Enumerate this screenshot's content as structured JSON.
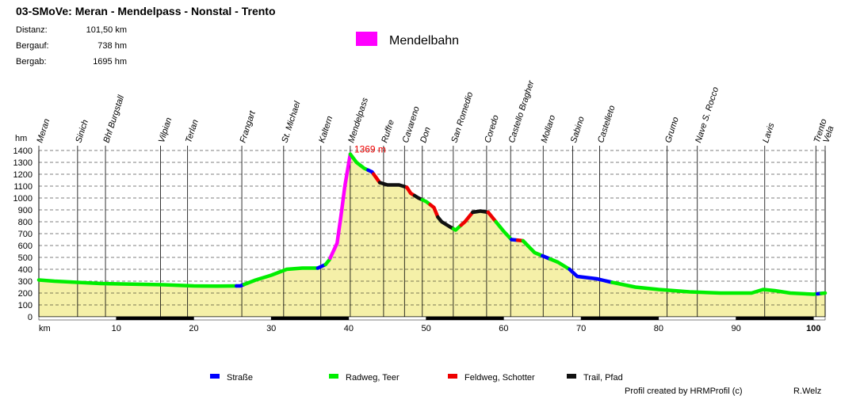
{
  "chart_data": {
    "type": "area",
    "title": "03-SMoVe: Meran - Mendelpass - Nonstal - Trento",
    "stats": [
      {
        "label": "Distanz:",
        "value": "101,50 km"
      },
      {
        "label": "Bergauf:",
        "value": "738 hm"
      },
      {
        "label": "Bergab:",
        "value": "1695 hm"
      }
    ],
    "ylabel": "hm",
    "xlabel": "km",
    "ylim": [
      0,
      1400
    ],
    "xlim": [
      0,
      101.5
    ],
    "yticks": [
      0,
      100,
      200,
      300,
      400,
      500,
      600,
      700,
      800,
      900,
      1000,
      1100,
      1200,
      1300,
      1400
    ],
    "xticks": [
      10,
      20,
      30,
      40,
      50,
      60,
      70,
      80,
      90,
      100
    ],
    "grid": "horizontal",
    "max_label": "1369 m",
    "max_point": {
      "x": 40.2,
      "y": 1369
    },
    "profile": [
      {
        "x": 0,
        "y": 310
      },
      {
        "x": 2,
        "y": 300
      },
      {
        "x": 5,
        "y": 290
      },
      {
        "x": 8,
        "y": 280
      },
      {
        "x": 12,
        "y": 275
      },
      {
        "x": 16,
        "y": 270
      },
      {
        "x": 20,
        "y": 260
      },
      {
        "x": 23,
        "y": 258
      },
      {
        "x": 26,
        "y": 260
      },
      {
        "x": 28,
        "y": 310
      },
      {
        "x": 30,
        "y": 350
      },
      {
        "x": 32,
        "y": 400
      },
      {
        "x": 34,
        "y": 410
      },
      {
        "x": 36,
        "y": 410
      },
      {
        "x": 37,
        "y": 440
      },
      {
        "x": 37.5,
        "y": 480
      },
      {
        "x": 38.5,
        "y": 620
      },
      {
        "x": 39,
        "y": 850
      },
      {
        "x": 39.5,
        "y": 1100
      },
      {
        "x": 40.2,
        "y": 1369
      },
      {
        "x": 41,
        "y": 1300
      },
      {
        "x": 42,
        "y": 1250
      },
      {
        "x": 43,
        "y": 1220
      },
      {
        "x": 44,
        "y": 1130
      },
      {
        "x": 45,
        "y": 1110
      },
      {
        "x": 46.5,
        "y": 1110
      },
      {
        "x": 47.5,
        "y": 1090
      },
      {
        "x": 48,
        "y": 1040
      },
      {
        "x": 49,
        "y": 1000
      },
      {
        "x": 50,
        "y": 970
      },
      {
        "x": 51,
        "y": 920
      },
      {
        "x": 51.5,
        "y": 840
      },
      {
        "x": 52,
        "y": 800
      },
      {
        "x": 53,
        "y": 760
      },
      {
        "x": 53.8,
        "y": 730
      },
      {
        "x": 55,
        "y": 800
      },
      {
        "x": 56,
        "y": 880
      },
      {
        "x": 57,
        "y": 890
      },
      {
        "x": 58,
        "y": 880
      },
      {
        "x": 59,
        "y": 800
      },
      {
        "x": 60,
        "y": 720
      },
      {
        "x": 61,
        "y": 650
      },
      {
        "x": 62.5,
        "y": 640
      },
      {
        "x": 64,
        "y": 540
      },
      {
        "x": 65.5,
        "y": 500
      },
      {
        "x": 67,
        "y": 460
      },
      {
        "x": 68.5,
        "y": 400
      },
      {
        "x": 69.5,
        "y": 340
      },
      {
        "x": 72,
        "y": 320
      },
      {
        "x": 74,
        "y": 290
      },
      {
        "x": 77,
        "y": 250
      },
      {
        "x": 80,
        "y": 230
      },
      {
        "x": 84,
        "y": 210
      },
      {
        "x": 88,
        "y": 200
      },
      {
        "x": 92,
        "y": 200
      },
      {
        "x": 93.5,
        "y": 230
      },
      {
        "x": 95,
        "y": 220
      },
      {
        "x": 97,
        "y": 200
      },
      {
        "x": 100,
        "y": 190
      },
      {
        "x": 101.5,
        "y": 200
      }
    ],
    "segments": [
      {
        "from": 0,
        "to": 25.5,
        "surface": "Radweg, Teer"
      },
      {
        "from": 25.5,
        "to": 26.5,
        "surface": "Straße"
      },
      {
        "from": 26.5,
        "to": 36,
        "surface": "Radweg, Teer"
      },
      {
        "from": 36,
        "to": 37,
        "surface": "Straße"
      },
      {
        "from": 37,
        "to": 37.6,
        "surface": "Radweg, Teer"
      },
      {
        "from": 37.6,
        "to": 40.2,
        "surface": "Mendelbahn"
      },
      {
        "from": 40.2,
        "to": 42.5,
        "surface": "Radweg, Teer"
      },
      {
        "from": 42.5,
        "to": 43.2,
        "surface": "Straße"
      },
      {
        "from": 43.2,
        "to": 44,
        "surface": "Feldweg, Schotter"
      },
      {
        "from": 44,
        "to": 47.5,
        "surface": "Trail, Pfad"
      },
      {
        "from": 47.5,
        "to": 48.5,
        "surface": "Feldweg, Schotter"
      },
      {
        "from": 48.5,
        "to": 49.5,
        "surface": "Trail, Pfad"
      },
      {
        "from": 49.5,
        "to": 50.5,
        "surface": "Radweg, Teer"
      },
      {
        "from": 50.5,
        "to": 51.5,
        "surface": "Feldweg, Schotter"
      },
      {
        "from": 51.5,
        "to": 53.5,
        "surface": "Trail, Pfad"
      },
      {
        "from": 53.5,
        "to": 54.5,
        "surface": "Radweg, Teer"
      },
      {
        "from": 54.5,
        "to": 56,
        "surface": "Feldweg, Schotter"
      },
      {
        "from": 56,
        "to": 58,
        "surface": "Trail, Pfad"
      },
      {
        "from": 58,
        "to": 59,
        "surface": "Feldweg, Schotter"
      },
      {
        "from": 59,
        "to": 61,
        "surface": "Radweg, Teer"
      },
      {
        "from": 61,
        "to": 61.8,
        "surface": "Straße"
      },
      {
        "from": 61.8,
        "to": 62.5,
        "surface": "Feldweg, Schotter"
      },
      {
        "from": 62.5,
        "to": 65,
        "surface": "Radweg, Teer"
      },
      {
        "from": 65,
        "to": 66,
        "surface": "Straße"
      },
      {
        "from": 66,
        "to": 68.5,
        "surface": "Radweg, Teer"
      },
      {
        "from": 68.5,
        "to": 74,
        "surface": "Straße"
      },
      {
        "from": 74,
        "to": 100.5,
        "surface": "Radweg, Teer"
      },
      {
        "from": 100.5,
        "to": 101,
        "surface": "Straße"
      },
      {
        "from": 101,
        "to": 101.5,
        "surface": "Radweg, Teer"
      }
    ],
    "waypoints": [
      {
        "name": "Meran",
        "km": 0
      },
      {
        "name": "Sinich",
        "km": 5
      },
      {
        "name": "Bhf Burgstall",
        "km": 8.6
      },
      {
        "name": "Vilpian",
        "km": 15.7
      },
      {
        "name": "Terlan",
        "km": 19.2
      },
      {
        "name": "Frangart",
        "km": 26.2
      },
      {
        "name": "St. Michael",
        "km": 31.6
      },
      {
        "name": "Kaltern",
        "km": 36.4
      },
      {
        "name": "Mendelpass",
        "km": 40.2
      },
      {
        "name": "Ruffre",
        "km": 44.5
      },
      {
        "name": "Cavareno",
        "km": 47.2
      },
      {
        "name": "Don",
        "km": 49.5
      },
      {
        "name": "San Romedio",
        "km": 53.5
      },
      {
        "name": "Coredo",
        "km": 57.8
      },
      {
        "name": "Castello Bragher",
        "km": 60.9
      },
      {
        "name": "Mollaro",
        "km": 65.1
      },
      {
        "name": "Sabino",
        "km": 68.9
      },
      {
        "name": "Castelleto",
        "km": 72.4
      },
      {
        "name": "Grumo",
        "km": 81.1
      },
      {
        "name": "Nave S. Rocco",
        "km": 85
      },
      {
        "name": "Lavis",
        "km": 93.7
      },
      {
        "name": "Trento",
        "km": 100.3
      },
      {
        "name": "Vela",
        "km": 101.5
      }
    ],
    "legend_top": {
      "name": "Mendelbahn",
      "color": "#ff00ff"
    },
    "legend_bottom": [
      {
        "name": "Straße",
        "color": "#0000ff"
      },
      {
        "name": "Radweg, Teer",
        "color": "#00ee00"
      },
      {
        "name": "Feldweg, Schotter",
        "color": "#ee0000"
      },
      {
        "name": "Trail, Pfad",
        "color": "#111111"
      }
    ],
    "colors": {
      "fill": "#f5f0a8",
      "Mendelbahn": "#ff00ff",
      "Straße": "#0000ff",
      "Radweg, Teer": "#00ee00",
      "Feldweg, Schotter": "#ee0000",
      "Trail, Pfad": "#111111"
    },
    "footer_left": "Profil created by HRMProfil (c)",
    "footer_right": "R.Welz"
  }
}
